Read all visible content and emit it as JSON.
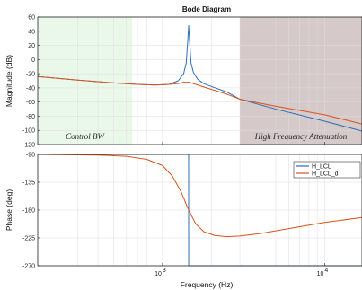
{
  "chart_data": {
    "type": "line",
    "title": "Bode Diagram",
    "xlabel": "Frequency  (Hz)",
    "xscale": "log",
    "xlim": [
      170,
      17000
    ],
    "x_ticks": [
      {
        "value": 1000,
        "base": "10",
        "exp": "3"
      },
      {
        "value": 10000,
        "base": "10",
        "exp": "4"
      }
    ],
    "regions": [
      {
        "label": "Control BW",
        "x_range": [
          170,
          650
        ],
        "color": "#eaf8ea"
      },
      {
        "label": "High Frequency Attenuation",
        "x_range": [
          3000,
          17000
        ],
        "color": "#d6c9c9"
      }
    ],
    "magnitude": {
      "ylabel": "Magnitude (dB)",
      "ylim": [
        -120,
        60
      ],
      "yticks": [
        "60",
        "40",
        "20",
        "0",
        "-20",
        "-40",
        "-60",
        "-80",
        "-100",
        "-120"
      ],
      "series": [
        {
          "name": "H_LCL",
          "color": "#2f6db5",
          "points": [
            [
              170,
              -24
            ],
            [
              300,
              -29
            ],
            [
              500,
              -33
            ],
            [
              700,
              -35
            ],
            [
              900,
              -36
            ],
            [
              1100,
              -35
            ],
            [
              1250,
              -30
            ],
            [
              1350,
              -20
            ],
            [
              1400,
              -5
            ],
            [
              1430,
              25
            ],
            [
              1450,
              48
            ],
            [
              1470,
              25
            ],
            [
              1500,
              -5
            ],
            [
              1550,
              -18
            ],
            [
              1650,
              -28
            ],
            [
              1800,
              -34
            ],
            [
              2000,
              -38
            ],
            [
              2500,
              -46
            ],
            [
              3000,
              -56
            ],
            [
              5000,
              -70
            ],
            [
              10000,
              -87
            ],
            [
              17000,
              -101
            ]
          ]
        },
        {
          "name": "H_LCL_d",
          "color": "#d9541a",
          "points": [
            [
              170,
              -24
            ],
            [
              300,
              -29
            ],
            [
              500,
              -33
            ],
            [
              700,
              -35
            ],
            [
              900,
              -36
            ],
            [
              1100,
              -35
            ],
            [
              1250,
              -34
            ],
            [
              1350,
              -32
            ],
            [
              1450,
              -32
            ],
            [
              1550,
              -34
            ],
            [
              1700,
              -37
            ],
            [
              2000,
              -42
            ],
            [
              2500,
              -49
            ],
            [
              3000,
              -56
            ],
            [
              5000,
              -66
            ],
            [
              10000,
              -78
            ],
            [
              17000,
              -91
            ]
          ]
        }
      ]
    },
    "phase": {
      "ylabel": "Phase (deg)",
      "ylim": [
        -270,
        -90
      ],
      "yticks": [
        "-90",
        "-135",
        "-180",
        "-225",
        "-270"
      ],
      "legend_position": "top-right",
      "series": [
        {
          "name": "H_LCL",
          "color": "#2f6db5",
          "points": [
            [
              170,
              -90
            ],
            [
              1449,
              -90
            ],
            [
              1450,
              -270
            ],
            [
              17000,
              -270
            ]
          ]
        },
        {
          "name": "H_LCL_d",
          "color": "#d9541a",
          "points": [
            [
              170,
              -90
            ],
            [
              400,
              -91
            ],
            [
              600,
              -93
            ],
            [
              800,
              -98
            ],
            [
              1000,
              -108
            ],
            [
              1150,
              -125
            ],
            [
              1300,
              -150
            ],
            [
              1450,
              -180
            ],
            [
              1600,
              -202
            ],
            [
              1800,
              -215
            ],
            [
              2100,
              -221
            ],
            [
              2500,
              -223
            ],
            [
              3000,
              -222
            ],
            [
              4000,
              -218
            ],
            [
              6000,
              -210
            ],
            [
              10000,
              -200
            ],
            [
              17000,
              -192
            ]
          ]
        }
      ]
    }
  }
}
